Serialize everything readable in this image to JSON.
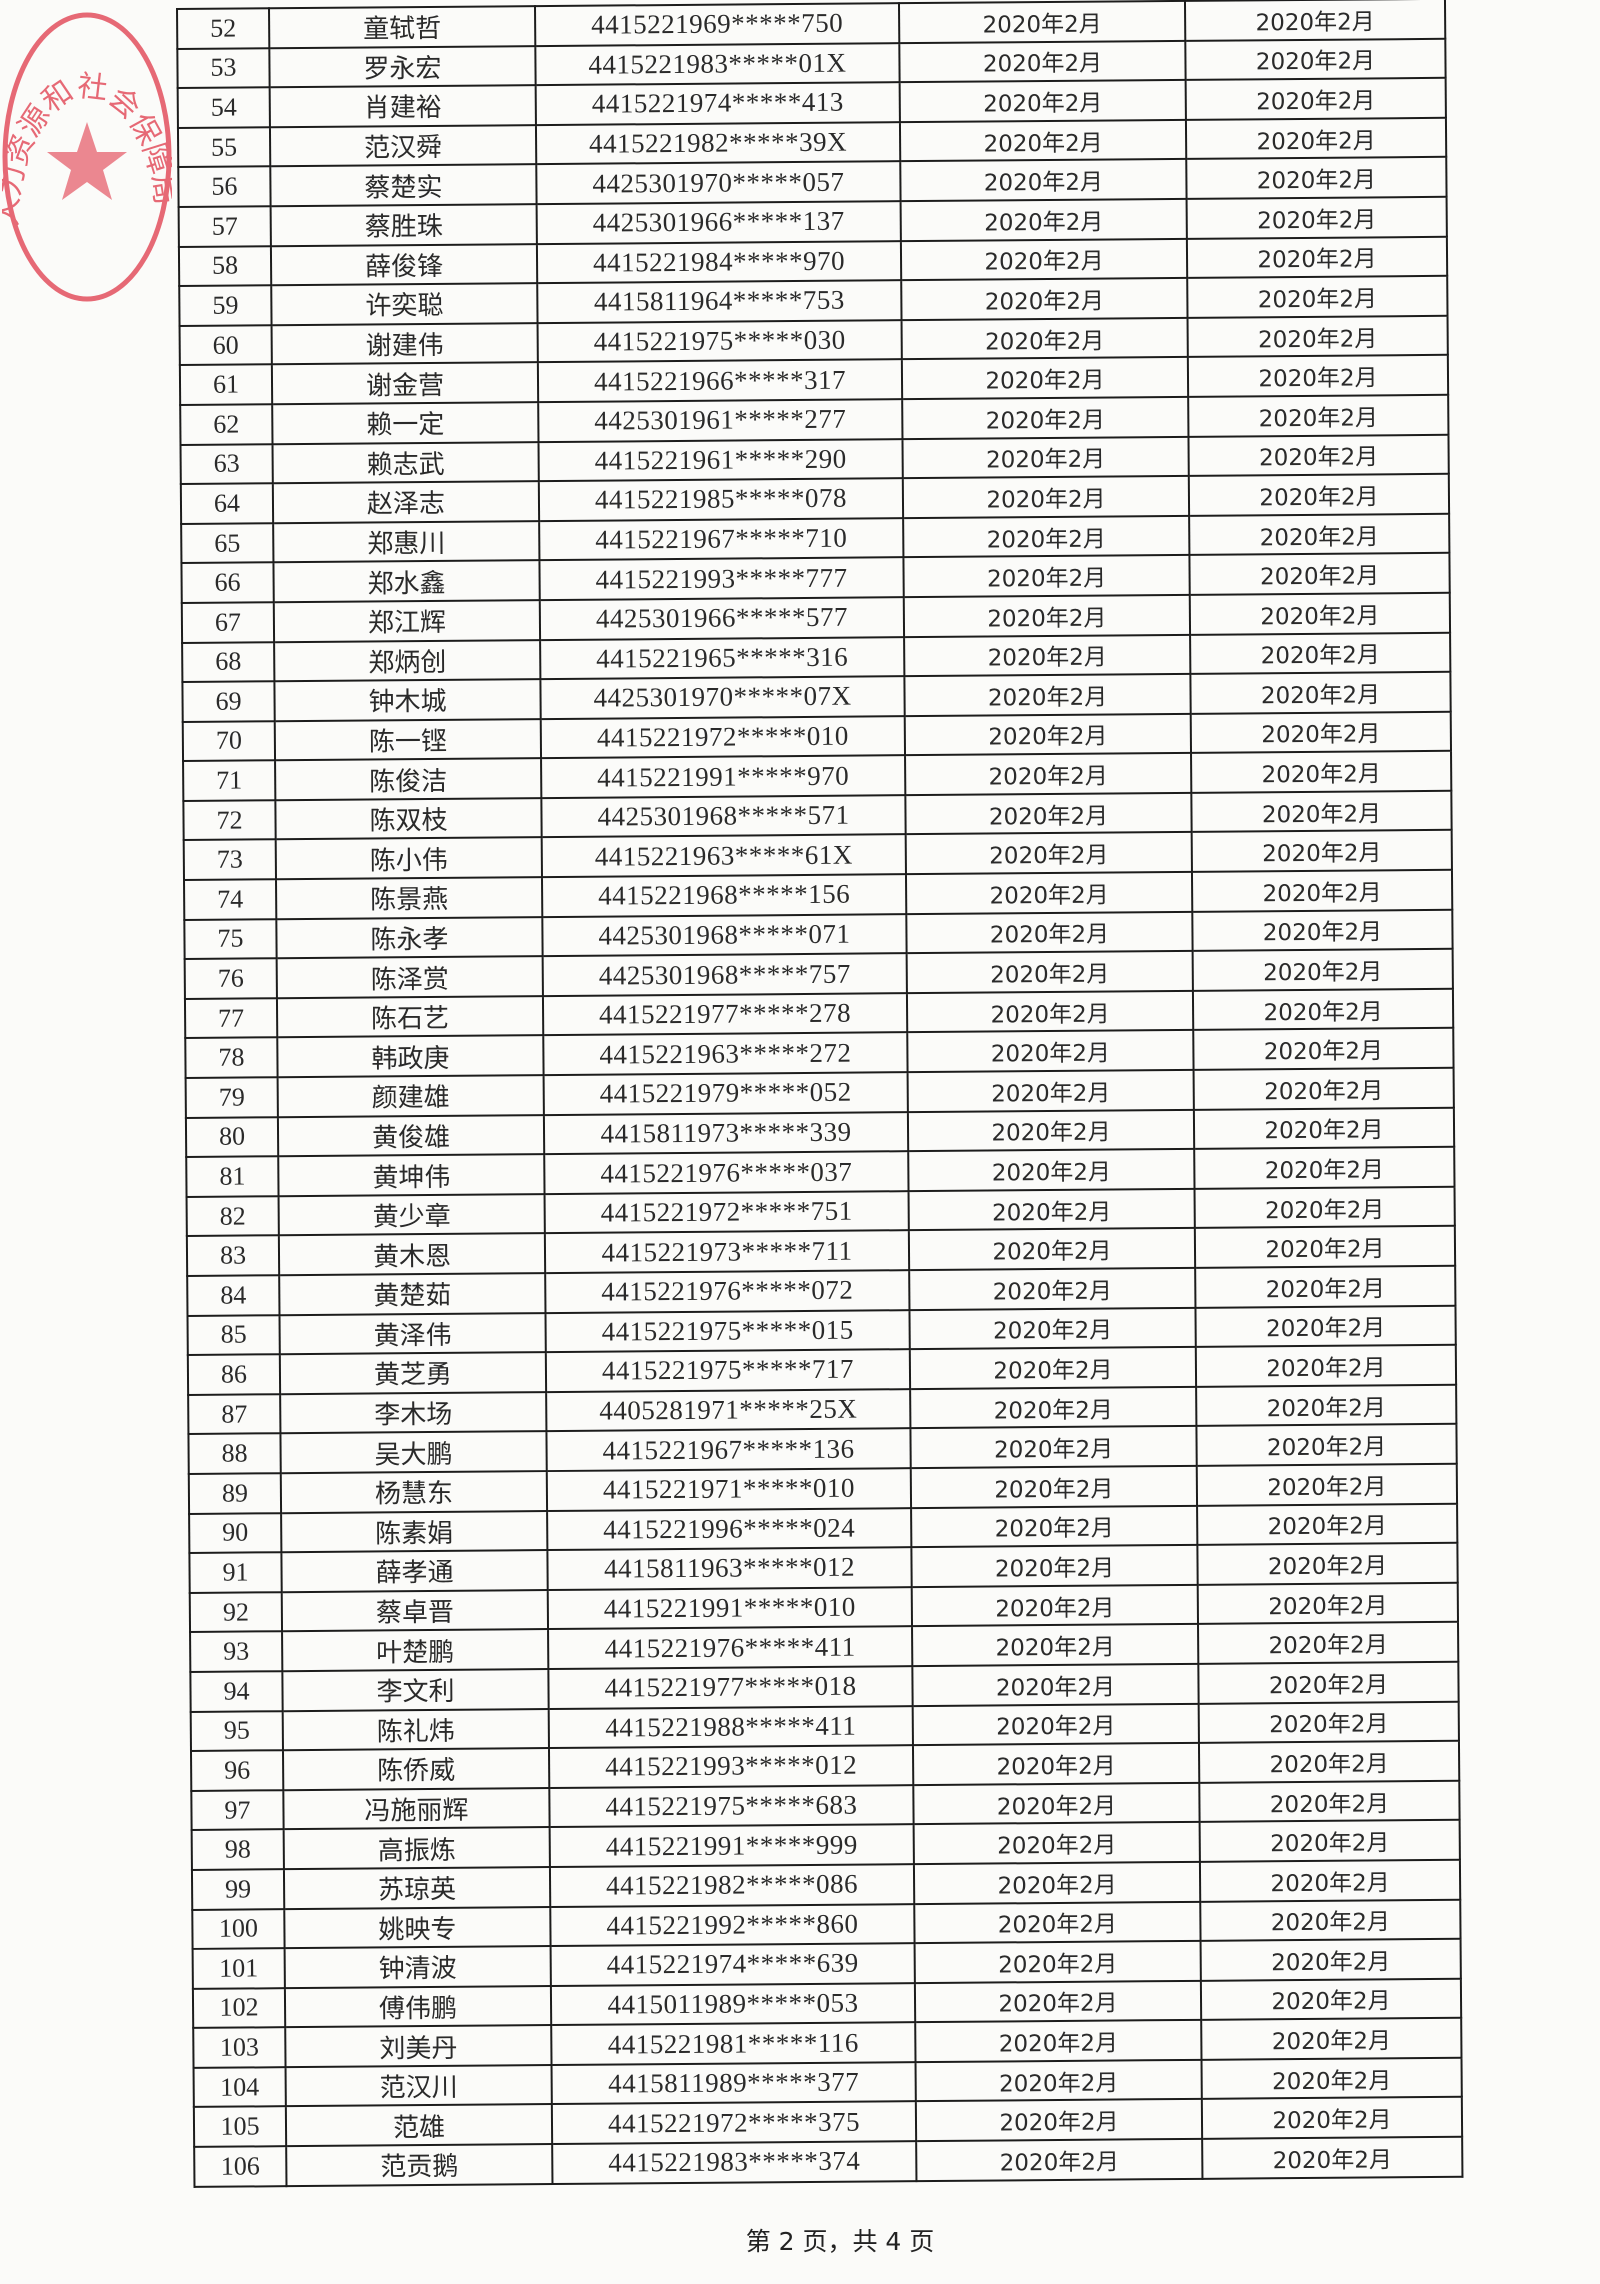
{
  "document": {
    "footer": "第 2 页，共 4 页",
    "stamp_text": "人力资源和社会保障局",
    "stamp_color": "#e0394a"
  },
  "table": {
    "rows": [
      [
        "52",
        "童轼哲",
        "4415221969*****750",
        "2020年2月",
        "2020年2月"
      ],
      [
        "53",
        "罗永宏",
        "4415221983*****01X",
        "2020年2月",
        "2020年2月"
      ],
      [
        "54",
        "肖建裕",
        "4415221974*****413",
        "2020年2月",
        "2020年2月"
      ],
      [
        "55",
        "范汉舜",
        "4415221982*****39X",
        "2020年2月",
        "2020年2月"
      ],
      [
        "56",
        "蔡楚实",
        "4425301970*****057",
        "2020年2月",
        "2020年2月"
      ],
      [
        "57",
        "蔡胜珠",
        "4425301966*****137",
        "2020年2月",
        "2020年2月"
      ],
      [
        "58",
        "薛俊锋",
        "4415221984*****970",
        "2020年2月",
        "2020年2月"
      ],
      [
        "59",
        "许奕聪",
        "4415811964*****753",
        "2020年2月",
        "2020年2月"
      ],
      [
        "60",
        "谢建伟",
        "4415221975*****030",
        "2020年2月",
        "2020年2月"
      ],
      [
        "61",
        "谢金营",
        "4415221966*****317",
        "2020年2月",
        "2020年2月"
      ],
      [
        "62",
        "赖一定",
        "4425301961*****277",
        "2020年2月",
        "2020年2月"
      ],
      [
        "63",
        "赖志武",
        "4415221961*****290",
        "2020年2月",
        "2020年2月"
      ],
      [
        "64",
        "赵泽志",
        "4415221985*****078",
        "2020年2月",
        "2020年2月"
      ],
      [
        "65",
        "郑惠川",
        "4415221967*****710",
        "2020年2月",
        "2020年2月"
      ],
      [
        "66",
        "郑水鑫",
        "4415221993*****777",
        "2020年2月",
        "2020年2月"
      ],
      [
        "67",
        "郑江辉",
        "4425301966*****577",
        "2020年2月",
        "2020年2月"
      ],
      [
        "68",
        "郑炳创",
        "4415221965*****316",
        "2020年2月",
        "2020年2月"
      ],
      [
        "69",
        "钟木城",
        "4425301970*****07X",
        "2020年2月",
        "2020年2月"
      ],
      [
        "70",
        "陈一铿",
        "4415221972*****010",
        "2020年2月",
        "2020年2月"
      ],
      [
        "71",
        "陈俊洁",
        "4415221991*****970",
        "2020年2月",
        "2020年2月"
      ],
      [
        "72",
        "陈双枝",
        "4425301968*****571",
        "2020年2月",
        "2020年2月"
      ],
      [
        "73",
        "陈小伟",
        "4415221963*****61X",
        "2020年2月",
        "2020年2月"
      ],
      [
        "74",
        "陈景燕",
        "4415221968*****156",
        "2020年2月",
        "2020年2月"
      ],
      [
        "75",
        "陈永孝",
        "4425301968*****071",
        "2020年2月",
        "2020年2月"
      ],
      [
        "76",
        "陈泽赏",
        "4425301968*****757",
        "2020年2月",
        "2020年2月"
      ],
      [
        "77",
        "陈石艺",
        "4415221977*****278",
        "2020年2月",
        "2020年2月"
      ],
      [
        "78",
        "韩政庚",
        "4415221963*****272",
        "2020年2月",
        "2020年2月"
      ],
      [
        "79",
        "颜建雄",
        "4415221979*****052",
        "2020年2月",
        "2020年2月"
      ],
      [
        "80",
        "黄俊雄",
        "4415811973*****339",
        "2020年2月",
        "2020年2月"
      ],
      [
        "81",
        "黄坤伟",
        "4415221976*****037",
        "2020年2月",
        "2020年2月"
      ],
      [
        "82",
        "黄少章",
        "4415221972*****751",
        "2020年2月",
        "2020年2月"
      ],
      [
        "83",
        "黄木恩",
        "4415221973*****711",
        "2020年2月",
        "2020年2月"
      ],
      [
        "84",
        "黄楚茹",
        "4415221976*****072",
        "2020年2月",
        "2020年2月"
      ],
      [
        "85",
        "黄泽伟",
        "4415221975*****015",
        "2020年2月",
        "2020年2月"
      ],
      [
        "86",
        "黄芝勇",
        "4415221975*****717",
        "2020年2月",
        "2020年2月"
      ],
      [
        "87",
        "李木场",
        "4405281971*****25X",
        "2020年2月",
        "2020年2月"
      ],
      [
        "88",
        "吴大鹏",
        "4415221967*****136",
        "2020年2月",
        "2020年2月"
      ],
      [
        "89",
        "杨慧东",
        "4415221971*****010",
        "2020年2月",
        "2020年2月"
      ],
      [
        "90",
        "陈素娟",
        "4415221996*****024",
        "2020年2月",
        "2020年2月"
      ],
      [
        "91",
        "薛孝通",
        "4415811963*****012",
        "2020年2月",
        "2020年2月"
      ],
      [
        "92",
        "蔡卓晋",
        "4415221991*****010",
        "2020年2月",
        "2020年2月"
      ],
      [
        "93",
        "叶楚鹏",
        "4415221976*****411",
        "2020年2月",
        "2020年2月"
      ],
      [
        "94",
        "李文利",
        "4415221977*****018",
        "2020年2月",
        "2020年2月"
      ],
      [
        "95",
        "陈礼炜",
        "4415221988*****411",
        "2020年2月",
        "2020年2月"
      ],
      [
        "96",
        "陈侨威",
        "4415221993*****012",
        "2020年2月",
        "2020年2月"
      ],
      [
        "97",
        "冯施丽辉",
        "4415221975*****683",
        "2020年2月",
        "2020年2月"
      ],
      [
        "98",
        "高振炼",
        "4415221991*****999",
        "2020年2月",
        "2020年2月"
      ],
      [
        "99",
        "苏琼英",
        "4415221982*****086",
        "2020年2月",
        "2020年2月"
      ],
      [
        "100",
        "姚映专",
        "4415221992*****860",
        "2020年2月",
        "2020年2月"
      ],
      [
        "101",
        "钟清波",
        "4415221974*****639",
        "2020年2月",
        "2020年2月"
      ],
      [
        "102",
        "傅伟鹏",
        "4415011989*****053",
        "2020年2月",
        "2020年2月"
      ],
      [
        "103",
        "刘美丹",
        "4415221981*****116",
        "2020年2月",
        "2020年2月"
      ],
      [
        "104",
        "范汉川",
        "4415811989*****377",
        "2020年2月",
        "2020年2月"
      ],
      [
        "105",
        "范雄",
        "4415221972*****375",
        "2020年2月",
        "2020年2月"
      ],
      [
        "106",
        "范贡鹅",
        "4415221983*****374",
        "2020年2月",
        "2020年2月"
      ]
    ]
  }
}
